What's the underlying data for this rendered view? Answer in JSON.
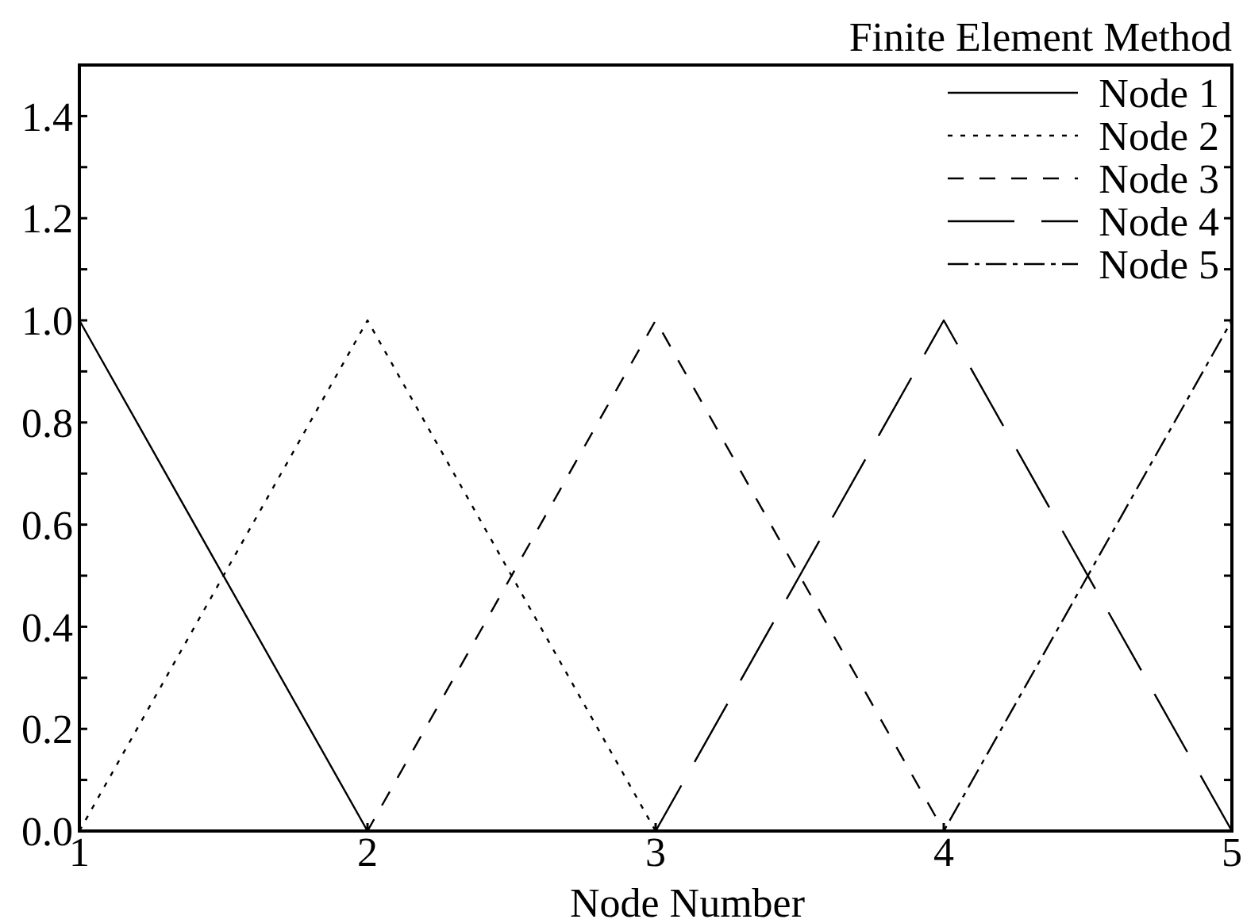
{
  "chart_data": {
    "type": "line",
    "title": "Finite Element Method",
    "xlabel": "Node Number",
    "x": [
      1,
      2,
      3,
      4,
      5
    ],
    "series": [
      {
        "name": "Node 1",
        "color": "#000000",
        "line_style": "solid",
        "values": [
          1,
          0,
          0,
          0,
          0
        ]
      },
      {
        "name": "Node 2",
        "color": "#000000",
        "line_style": "dotted",
        "values": [
          0,
          1,
          0,
          0,
          0
        ]
      },
      {
        "name": "Node 3",
        "color": "#000000",
        "line_style": "dashed",
        "values": [
          0,
          0,
          1,
          0,
          0
        ]
      },
      {
        "name": "Node 4",
        "color": "#000000",
        "line_style": "dashed",
        "values": [
          0,
          0,
          0,
          1,
          0
        ]
      },
      {
        "name": "Node 5",
        "color": "#000000",
        "line_style": "dashed",
        "values": [
          0,
          0,
          0,
          0,
          1
        ]
      }
    ],
    "xlim": [
      1,
      5
    ],
    "xticks": [
      1,
      2,
      3,
      4,
      5
    ],
    "ylim": [
      0,
      1.5
    ],
    "yticks": [
      {
        "value": 0,
        "label": "0.0"
      },
      {
        "value": 0.1,
        "label": null
      },
      0.2,
      {
        "value": 0.3,
        "label": null
      },
      0.4,
      {
        "value": 0.5,
        "label": null
      },
      0.6,
      {
        "value": 0.7,
        "label": null
      },
      0.8,
      {
        "value": 0.9,
        "label": null
      },
      {
        "value": 1,
        "label": "1.0"
      },
      {
        "value": 1.1,
        "label": null
      },
      1.2,
      {
        "value": 1.3,
        "label": null
      },
      1.4
    ],
    "legend": "top right"
  }
}
